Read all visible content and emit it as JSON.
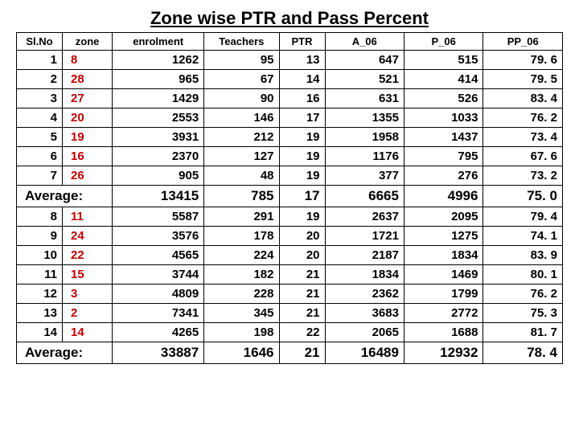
{
  "title": "Zone wise PTR and Pass Percent",
  "columns": [
    "Sl.No",
    "zone",
    "enrolment",
    "Teachers",
    "PTR",
    "A_06",
    "P_06",
    "PP_06"
  ],
  "group1": {
    "rows": [
      {
        "slno": "1",
        "zone": "8",
        "enrol": "1262",
        "teach": "95",
        "ptr": "13",
        "a06": "647",
        "p06": "515",
        "pp06": "79. 6"
      },
      {
        "slno": "2",
        "zone": "28",
        "enrol": "965",
        "teach": "67",
        "ptr": "14",
        "a06": "521",
        "p06": "414",
        "pp06": "79. 5"
      },
      {
        "slno": "3",
        "zone": "27",
        "enrol": "1429",
        "teach": "90",
        "ptr": "16",
        "a06": "631",
        "p06": "526",
        "pp06": "83. 4"
      },
      {
        "slno": "4",
        "zone": "20",
        "enrol": "2553",
        "teach": "146",
        "ptr": "17",
        "a06": "1355",
        "p06": "1033",
        "pp06": "76. 2"
      },
      {
        "slno": "5",
        "zone": "19",
        "enrol": "3931",
        "teach": "212",
        "ptr": "19",
        "a06": "1958",
        "p06": "1437",
        "pp06": "73. 4"
      },
      {
        "slno": "6",
        "zone": "16",
        "enrol": "2370",
        "teach": "127",
        "ptr": "19",
        "a06": "1176",
        "p06": "795",
        "pp06": "67. 6"
      },
      {
        "slno": "7",
        "zone": "26",
        "enrol": "905",
        "teach": "48",
        "ptr": "19",
        "a06": "377",
        "p06": "276",
        "pp06": "73. 2"
      }
    ],
    "avg": {
      "label": "Average:",
      "enrol": "13415",
      "teach": "785",
      "ptr": "17",
      "a06": "6665",
      "p06": "4996",
      "pp06": "75. 0"
    }
  },
  "group2": {
    "rows": [
      {
        "slno": "8",
        "zone": "11",
        "enrol": "5587",
        "teach": "291",
        "ptr": "19",
        "a06": "2637",
        "p06": "2095",
        "pp06": "79. 4"
      },
      {
        "slno": "9",
        "zone": "24",
        "enrol": "3576",
        "teach": "178",
        "ptr": "20",
        "a06": "1721",
        "p06": "1275",
        "pp06": "74. 1"
      },
      {
        "slno": "10",
        "zone": "22",
        "enrol": "4565",
        "teach": "224",
        "ptr": "20",
        "a06": "2187",
        "p06": "1834",
        "pp06": "83. 9"
      },
      {
        "slno": "11",
        "zone": "15",
        "enrol": "3744",
        "teach": "182",
        "ptr": "21",
        "a06": "1834",
        "p06": "1469",
        "pp06": "80. 1"
      },
      {
        "slno": "12",
        "zone": "3",
        "enrol": "4809",
        "teach": "228",
        "ptr": "21",
        "a06": "2362",
        "p06": "1799",
        "pp06": "76. 2"
      },
      {
        "slno": "13",
        "zone": "2",
        "enrol": "7341",
        "teach": "345",
        "ptr": "21",
        "a06": "3683",
        "p06": "2772",
        "pp06": "75. 3"
      },
      {
        "slno": "14",
        "zone": "14",
        "enrol": "4265",
        "teach": "198",
        "ptr": "22",
        "a06": "2065",
        "p06": "1688",
        "pp06": "81. 7"
      }
    ],
    "avg": {
      "label": "Average:",
      "enrol": "33887",
      "teach": "1646",
      "ptr": "21",
      "a06": "16489",
      "p06": "12932",
      "pp06": "78. 4"
    }
  },
  "style": {
    "zone_color": "#c00000",
    "border_color": "#000000",
    "title_fontsize": 22,
    "header_fontsize": 13,
    "cell_fontsize": 15,
    "avg_fontsize": 17
  }
}
